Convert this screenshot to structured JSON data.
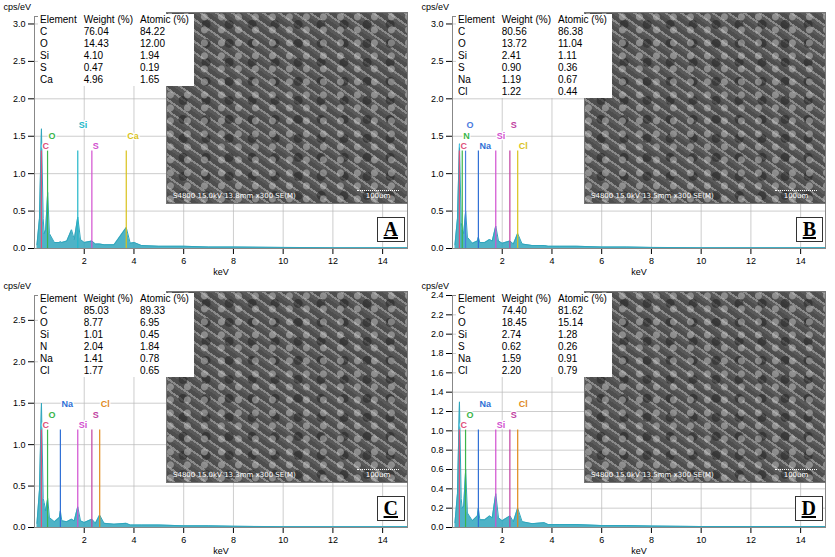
{
  "chart_data": [
    {
      "type": "area",
      "panel_label": "A",
      "y_label": "cps/eV",
      "x_label": "keV",
      "color": "#2fa6bd",
      "grid": true,
      "xlim": [
        0,
        15
      ],
      "xticks": [
        2,
        4,
        6,
        8,
        10,
        12,
        14
      ],
      "ylim": [
        0,
        3.1
      ],
      "yticks": [
        {
          "value": 0,
          "label": "0.0"
        },
        0.5,
        {
          "value": 1,
          "label": "1.0"
        },
        1.5,
        {
          "value": 2,
          "label": "2.0"
        },
        2.5,
        {
          "value": 3,
          "label": "3.0"
        }
      ],
      "x": [
        0.1,
        0.2,
        0.28,
        0.35,
        0.39,
        0.45,
        0.53,
        0.6,
        0.8,
        1.0,
        1.04,
        1.1,
        1.3,
        1.49,
        1.6,
        1.74,
        1.85,
        2.0,
        2.31,
        2.45,
        2.62,
        2.8,
        3.2,
        3.69,
        3.85,
        4.01,
        4.3,
        5,
        6,
        7,
        8,
        10,
        12,
        14,
        15
      ],
      "values": [
        0.05,
        0.4,
        1.6,
        0.4,
        0.2,
        0.25,
        0.75,
        0.2,
        0.08,
        0.08,
        0.09,
        0.08,
        0.1,
        0.25,
        0.12,
        0.42,
        0.12,
        0.08,
        0.1,
        0.06,
        0.06,
        0.05,
        0.05,
        0.28,
        0.07,
        0.08,
        0.04,
        0.03,
        0.03,
        0.02,
        0.02,
        0.015,
        0.01,
        0.01,
        0.01
      ],
      "markers": [
        {
          "label": "C",
          "x": 0.277,
          "color": "#e0507a"
        },
        {
          "label": "O",
          "x": 0.525,
          "color": "#3bb54a"
        },
        {
          "label": "Si",
          "x": 1.74,
          "color": "#23b7c9"
        },
        {
          "label": "S",
          "x": 2.307,
          "color": "#d24fd0"
        },
        {
          "label": "Ca",
          "x": 3.69,
          "color": "#d9c21a"
        }
      ],
      "table": {
        "header": [
          "Element",
          "Weight (%)",
          "Atomic (%)"
        ],
        "rows": [
          [
            "C",
            "76.04",
            "84.22"
          ],
          [
            "O",
            "14.43",
            "12.00"
          ],
          [
            "Si",
            "4.10",
            "1.94"
          ],
          [
            "S",
            "0.47",
            "0.19"
          ],
          [
            "Ca",
            "4.96",
            "1.65"
          ]
        ]
      },
      "image_caption": "S4800 15.0kV 13.8mm x300 SE(M)",
      "scale_bar": "100um"
    },
    {
      "type": "area",
      "panel_label": "B",
      "y_label": "cps/eV",
      "x_label": "keV",
      "color": "#2fa6bd",
      "grid": true,
      "xlim": [
        0,
        15
      ],
      "xticks": [
        2,
        4,
        6,
        8,
        10,
        12,
        14
      ],
      "ylim": [
        0,
        3.1
      ],
      "yticks": [
        {
          "value": 0,
          "label": "0.0"
        },
        0.5,
        {
          "value": 1,
          "label": "1.0"
        },
        1.5,
        {
          "value": 2,
          "label": "2.0"
        },
        2.5,
        {
          "value": 3,
          "label": "3.0"
        }
      ],
      "x": [
        0.1,
        0.2,
        0.28,
        0.35,
        0.39,
        0.45,
        0.53,
        0.6,
        0.8,
        1.0,
        1.04,
        1.1,
        1.3,
        1.49,
        1.6,
        1.74,
        1.85,
        2.0,
        2.31,
        2.45,
        2.62,
        2.8,
        3.2,
        3.69,
        3.85,
        4.01,
        4.3,
        5,
        6,
        7,
        8,
        10,
        12,
        14,
        15
      ],
      "values": [
        0.05,
        0.4,
        1.4,
        0.35,
        0.25,
        0.2,
        0.5,
        0.15,
        0.07,
        0.1,
        0.15,
        0.08,
        0.08,
        0.12,
        0.1,
        0.3,
        0.1,
        0.07,
        0.1,
        0.06,
        0.2,
        0.06,
        0.04,
        0.04,
        0.03,
        0.03,
        0.03,
        0.03,
        0.02,
        0.02,
        0.015,
        0.01,
        0.01,
        0.01,
        0.01
      ],
      "markers": [
        {
          "label": "C",
          "x": 0.277,
          "color": "#e0507a"
        },
        {
          "label": "N",
          "x": 0.392,
          "color": "#3bb54a"
        },
        {
          "label": "O",
          "x": 0.525,
          "color": "#4a7be0"
        },
        {
          "label": "Na",
          "x": 1.041,
          "color": "#2f6fd6"
        },
        {
          "label": "Si",
          "x": 1.74,
          "color": "#d24fd0"
        },
        {
          "label": "S",
          "x": 2.307,
          "color": "#c040a0"
        },
        {
          "label": "Cl",
          "x": 2.622,
          "color": "#d9c21a"
        }
      ],
      "table": {
        "header": [
          "Element",
          "Weight (%)",
          "Atomic (%)"
        ],
        "rows": [
          [
            "C",
            "80.56",
            "86.38"
          ],
          [
            "O",
            "13.72",
            "11.04"
          ],
          [
            "Si",
            "2.41",
            "1.11"
          ],
          [
            "S",
            "0.90",
            "0.36"
          ],
          [
            "Na",
            "1.19",
            "0.67"
          ],
          [
            "Cl",
            "1.22",
            "0.44"
          ]
        ]
      },
      "image_caption": "S4800 15.0kV 13.5mm x300 SE(M)",
      "scale_bar": "100um"
    },
    {
      "type": "area",
      "panel_label": "C",
      "y_label": "cps/eV",
      "x_label": "keV",
      "color": "#2fa6bd",
      "grid": true,
      "xlim": [
        0,
        15
      ],
      "xticks": [
        2,
        4,
        6,
        8,
        10,
        12,
        14
      ],
      "ylim": [
        0,
        2.8
      ],
      "yticks": [
        {
          "value": 0,
          "label": "0.0"
        },
        0.5,
        {
          "value": 1,
          "label": "1.0"
        },
        1.5,
        {
          "value": 2,
          "label": "2.0"
        },
        2.5
      ],
      "x": [
        0.1,
        0.2,
        0.28,
        0.35,
        0.39,
        0.45,
        0.53,
        0.6,
        0.8,
        1.0,
        1.04,
        1.1,
        1.3,
        1.49,
        1.6,
        1.74,
        1.85,
        2.0,
        2.31,
        2.45,
        2.62,
        2.8,
        3.2,
        3.69,
        3.85,
        4.01,
        4.3,
        5,
        6,
        7,
        8,
        10,
        12,
        14,
        15
      ],
      "values": [
        0.05,
        0.45,
        1.5,
        0.35,
        0.3,
        0.2,
        0.35,
        0.12,
        0.07,
        0.12,
        0.2,
        0.08,
        0.07,
        0.1,
        0.08,
        0.25,
        0.08,
        0.06,
        0.1,
        0.05,
        0.15,
        0.05,
        0.04,
        0.05,
        0.03,
        0.03,
        0.03,
        0.03,
        0.02,
        0.02,
        0.015,
        0.01,
        0.01,
        0.01,
        0.01
      ],
      "markers": [
        {
          "label": "C",
          "x": 0.277,
          "color": "#e0507a"
        },
        {
          "label": "O",
          "x": 0.525,
          "color": "#3bb54a"
        },
        {
          "label": "Na",
          "x": 1.041,
          "color": "#2f6fd6"
        },
        {
          "label": "Si",
          "x": 1.74,
          "color": "#d24fd0"
        },
        {
          "label": "S",
          "x": 2.307,
          "color": "#c040a0"
        },
        {
          "label": "Cl",
          "x": 2.622,
          "color": "#e08a1a"
        }
      ],
      "table": {
        "header": [
          "Element",
          "Weight (%)",
          "Atomic (%)"
        ],
        "rows": [
          [
            "C",
            "85.03",
            "89.33"
          ],
          [
            "O",
            "8.77",
            "6.95"
          ],
          [
            "Si",
            "1.01",
            "0.45"
          ],
          [
            "N",
            "2.04",
            "1.84"
          ],
          [
            "Na",
            "1.41",
            "0.78"
          ],
          [
            "Cl",
            "1.77",
            "0.65"
          ]
        ]
      },
      "image_caption": "S4800 15.0kV 13.3mm x300 SE(M)",
      "scale_bar": "100um"
    },
    {
      "type": "area",
      "panel_label": "D",
      "y_label": "cps/eV",
      "x_label": "keV",
      "color": "#2fa6bd",
      "grid": true,
      "xlim": [
        0,
        15
      ],
      "xticks": [
        2,
        4,
        6,
        8,
        10,
        12,
        14
      ],
      "ylim": [
        0,
        2.4
      ],
      "yticks": [
        {
          "value": 0,
          "label": "0.0"
        },
        0.2,
        0.4,
        0.6,
        0.8,
        {
          "value": 1,
          "label": "1.0"
        },
        1.2,
        1.4,
        1.6,
        1.8,
        {
          "value": 2,
          "label": "2.0"
        },
        2.2,
        2.4
      ],
      "x": [
        0.1,
        0.2,
        0.28,
        0.35,
        0.39,
        0.45,
        0.53,
        0.6,
        0.8,
        1.0,
        1.04,
        1.1,
        1.3,
        1.49,
        1.6,
        1.74,
        1.85,
        2.0,
        2.31,
        2.45,
        2.62,
        2.8,
        3.2,
        3.69,
        3.85,
        4.01,
        4.3,
        5,
        6,
        7,
        8,
        10,
        12,
        14,
        15
      ],
      "values": [
        0.05,
        0.35,
        1.3,
        0.3,
        0.2,
        0.22,
        0.6,
        0.15,
        0.07,
        0.12,
        0.2,
        0.08,
        0.08,
        0.12,
        0.1,
        0.35,
        0.1,
        0.07,
        0.12,
        0.06,
        0.2,
        0.06,
        0.04,
        0.05,
        0.03,
        0.03,
        0.03,
        0.03,
        0.02,
        0.02,
        0.015,
        0.01,
        0.01,
        0.01,
        0.01
      ],
      "markers": [
        {
          "label": "C",
          "x": 0.277,
          "color": "#e0507a"
        },
        {
          "label": "O",
          "x": 0.525,
          "color": "#3bb54a"
        },
        {
          "label": "Na",
          "x": 1.041,
          "color": "#2f6fd6"
        },
        {
          "label": "Si",
          "x": 1.74,
          "color": "#d24fd0"
        },
        {
          "label": "S",
          "x": 2.307,
          "color": "#c040a0"
        },
        {
          "label": "Cl",
          "x": 2.622,
          "color": "#e08a1a"
        }
      ],
      "table": {
        "header": [
          "Element",
          "Weight (%)",
          "Atomic (%)"
        ],
        "rows": [
          [
            "C",
            "74.40",
            "81.62"
          ],
          [
            "O",
            "18.45",
            "15.14"
          ],
          [
            "Si",
            "2.74",
            "1.28"
          ],
          [
            "S",
            "0.62",
            "0.26"
          ],
          [
            "Na",
            "1.59",
            "0.91"
          ],
          [
            "Cl",
            "2.20",
            "0.79"
          ]
        ]
      },
      "image_caption": "S4800 15.0kV 13.5mm x300 SE(M)",
      "scale_bar": "100um"
    }
  ]
}
